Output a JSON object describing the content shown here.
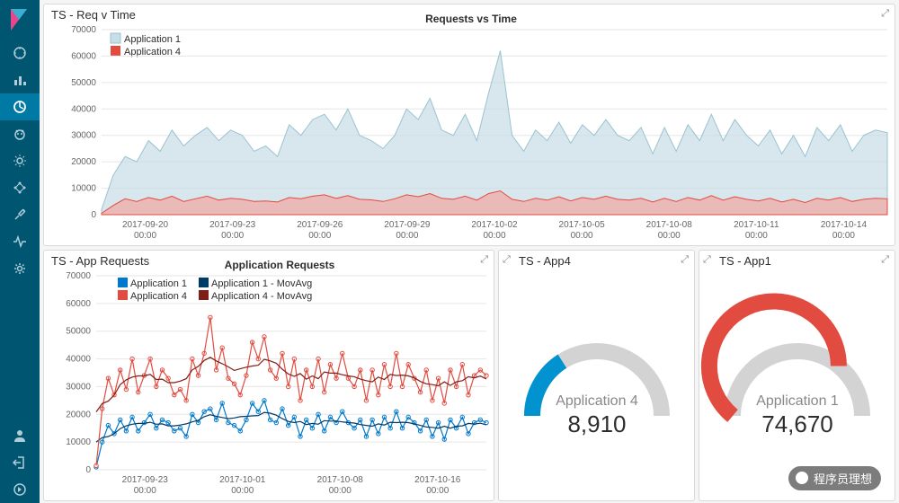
{
  "sidebar": {
    "active_index": 2
  },
  "panel_top": {
    "title": "TS - Req v Time",
    "chart_title": "Requests vs Time",
    "legend": {
      "s1": "Application 1",
      "s2": "Application 4"
    },
    "colors": {
      "s1_stroke": "#9bc2d0",
      "s1_fill": "#c8dde5",
      "s2_stroke": "#e24b3f",
      "s2_fill": "#f1a7a0",
      "grid": "#e6e6e6",
      "axis": "#666666"
    },
    "ylim": [
      0,
      70000
    ],
    "ytick_step": 10000,
    "x_labels": [
      "2017-09-20",
      "2017-09-23",
      "2017-09-26",
      "2017-09-29",
      "2017-10-02",
      "2017-10-05",
      "2017-10-08",
      "2017-10-11",
      "2017-10-14"
    ],
    "x_sub": "00:00",
    "s1": [
      2000,
      15000,
      22000,
      20000,
      28000,
      24000,
      32000,
      26000,
      30000,
      33000,
      28000,
      32000,
      30000,
      24000,
      26000,
      22000,
      34000,
      30000,
      36000,
      38000,
      32000,
      40000,
      30000,
      28000,
      25000,
      30000,
      40000,
      36000,
      44000,
      32000,
      30000,
      38000,
      28000,
      46000,
      62000,
      30000,
      24000,
      32000,
      28000,
      35000,
      27000,
      34000,
      30000,
      36000,
      30000,
      28000,
      33000,
      23000,
      33000,
      24000,
      34000,
      28000,
      38000,
      28000,
      36000,
      30000,
      26000,
      32000,
      23000,
      30000,
      22000,
      33000,
      28000,
      34000,
      24000,
      30000,
      32000,
      31000
    ],
    "s2": [
      500,
      3500,
      6000,
      5000,
      6500,
      5500,
      7000,
      5000,
      6000,
      7000,
      5500,
      6200,
      5800,
      5000,
      5200,
      4800,
      6500,
      6000,
      7000,
      7500,
      6200,
      7200,
      5800,
      5600,
      5000,
      6000,
      7500,
      6800,
      8000,
      6200,
      5800,
      7000,
      5500,
      8000,
      9000,
      5800,
      5000,
      6200,
      5500,
      6800,
      5200,
      6500,
      5800,
      7000,
      5800,
      5500,
      6200,
      4800,
      6200,
      5000,
      6500,
      5500,
      7200,
      5500,
      6800,
      5800,
      5200,
      6200,
      4800,
      5800,
      4600,
      6200,
      5500,
      6500,
      5000,
      5800,
      6200,
      6000
    ]
  },
  "panel_bl": {
    "title": "TS - App Requests",
    "chart_title": "Application Requests",
    "legend": {
      "l1": "Application 1",
      "l2": "Application 1 - MovAvg",
      "l3": "Application 4",
      "l4": "Application 4 - MovAvg"
    },
    "colors": {
      "l1": "#0079cc",
      "l2": "#003a66",
      "l3": "#e24b3f",
      "l4": "#801f18",
      "grid": "#e6e6e6"
    },
    "ylim": [
      0,
      70000
    ],
    "ytick_step": 10000,
    "x_labels": [
      "2017-09-23",
      "2017-10-01",
      "2017-10-08",
      "2017-10-16"
    ],
    "x_sub": "00:00",
    "s_l1": [
      1000,
      10000,
      16000,
      13000,
      18000,
      14000,
      19000,
      14000,
      17000,
      20000,
      15000,
      18000,
      17000,
      14000,
      15000,
      12000,
      20000,
      17000,
      21000,
      22000,
      18000,
      24000,
      17000,
      16000,
      14000,
      18000,
      24000,
      21000,
      25000,
      18000,
      17000,
      22000,
      16000,
      19000,
      12000,
      18000,
      15000,
      20000,
      14000,
      19000,
      17000,
      21000,
      17000,
      15000,
      18000,
      12000,
      18000,
      13000,
      19000,
      15000,
      21000,
      15000,
      19000,
      17000,
      14000,
      18000,
      12000,
      17000,
      11000,
      18000,
      15000,
      19000,
      13000,
      17000,
      18000,
      17000
    ],
    "s_l3": [
      1500,
      22000,
      33000,
      27000,
      36000,
      29000,
      40000,
      28000,
      34000,
      40000,
      30000,
      36000,
      33000,
      27000,
      29000,
      25000,
      40000,
      34000,
      42000,
      55000,
      36000,
      44000,
      33000,
      31000,
      27000,
      34000,
      46000,
      40000,
      48000,
      36000,
      33000,
      42000,
      30000,
      40000,
      25000,
      36000,
      30000,
      40000,
      28000,
      38000,
      33000,
      42000,
      33000,
      30000,
      36000,
      25000,
      36000,
      27000,
      38000,
      30000,
      42000,
      30000,
      38000,
      33000,
      28000,
      36000,
      25000,
      33000,
      24000,
      36000,
      30000,
      38000,
      27000,
      34000,
      36000,
      34000
    ]
  },
  "panel_g1": {
    "title": "TS - App4",
    "label": "Application 4",
    "value": "8,910",
    "color": "#0093d0",
    "track": "#d3d3d3",
    "fraction": 0.32
  },
  "panel_g2": {
    "title": "TS - App1",
    "label": "Application 1",
    "value": "74,670",
    "color": "#e24b3f",
    "track": "#d3d3d3",
    "fraction": 0.72
  },
  "watermark": "程序员理想"
}
